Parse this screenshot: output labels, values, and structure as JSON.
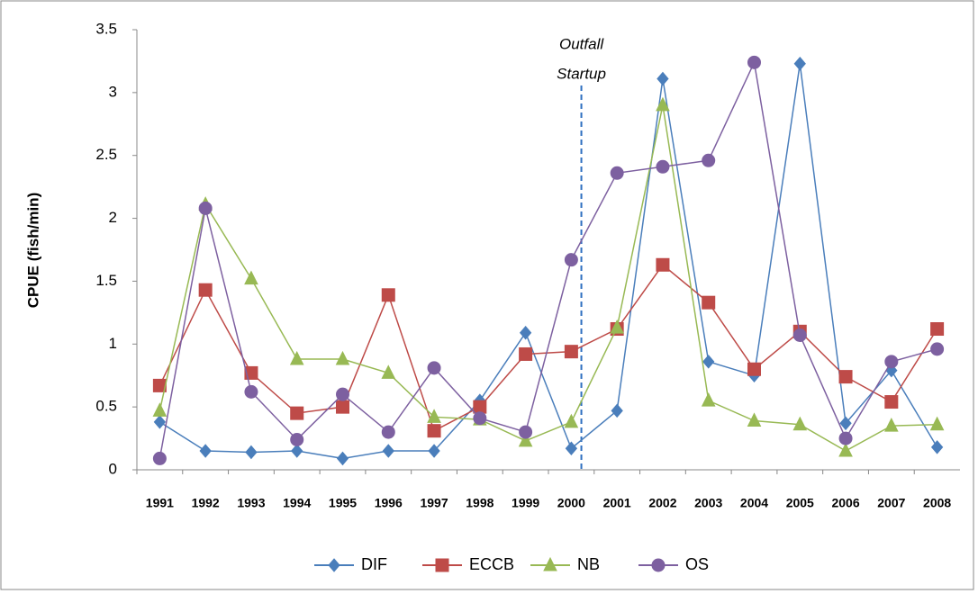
{
  "chart_data": {
    "type": "line",
    "y_label": "CPUE (fish/min)",
    "annotation": {
      "lines": [
        "Outfall",
        "Startup"
      ],
      "color": "#2e6fc0"
    },
    "categories": [
      "1991",
      "1992",
      "1993",
      "1994",
      "1995",
      "1996",
      "1997",
      "1998",
      "1999",
      "2000",
      "2001",
      "2002",
      "2003",
      "2004",
      "2005",
      "2006",
      "2007",
      "2008"
    ],
    "series": [
      {
        "name": "DIF",
        "color": "#4a7ebb",
        "marker": "diamond",
        "values": [
          0.38,
          0.15,
          0.14,
          0.15,
          0.09,
          0.15,
          0.15,
          0.55,
          1.09,
          0.17,
          0.47,
          3.11,
          0.86,
          0.75,
          3.23,
          0.37,
          0.79,
          0.18
        ]
      },
      {
        "name": "ECCB",
        "color": "#be4b48",
        "marker": "square",
        "values": [
          0.67,
          1.43,
          0.77,
          0.45,
          0.5,
          1.39,
          0.31,
          0.5,
          0.92,
          0.94,
          1.12,
          1.63,
          1.33,
          0.8,
          1.1,
          0.74,
          0.54,
          1.12
        ]
      },
      {
        "name": "NB",
        "color": "#98b954",
        "marker": "triangle",
        "values": [
          0.47,
          2.11,
          1.52,
          0.88,
          0.88,
          0.77,
          0.42,
          0.4,
          0.23,
          0.38,
          1.13,
          2.9,
          0.55,
          0.39,
          0.36,
          0.15,
          0.35,
          0.36
        ]
      },
      {
        "name": "OS",
        "color": "#7d60a0",
        "marker": "circle",
        "values": [
          0.09,
          2.08,
          0.62,
          0.24,
          0.6,
          0.3,
          0.81,
          0.41,
          0.3,
          1.67,
          2.36,
          2.41,
          2.46,
          3.24,
          1.07,
          0.25,
          0.86,
          0.96
        ]
      }
    ],
    "ylim": [
      0,
      3.5
    ],
    "yticks": [
      0,
      0.5,
      1,
      1.5,
      2,
      2.5,
      3,
      3.5
    ],
    "legend": "bottom"
  }
}
